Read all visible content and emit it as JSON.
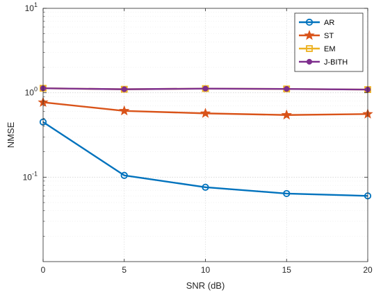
{
  "chart_data": {
    "type": "line",
    "xlabel": "SNR (dB)",
    "ylabel": "NMSE",
    "x": [
      0,
      5,
      10,
      15,
      20
    ],
    "xlim": [
      0,
      20
    ],
    "ylim": [
      0.01,
      10
    ],
    "yscale": "log",
    "grid": true,
    "legend_position": "top-right",
    "x_ticks": [
      "0",
      "5",
      "10",
      "15",
      "20"
    ],
    "y_ticks": [
      {
        "base": "10",
        "exp": "-1",
        "value": 0.1
      },
      {
        "base": "10",
        "exp": "0",
        "value": 1
      },
      {
        "base": "10",
        "exp": "1",
        "value": 10
      }
    ],
    "series": [
      {
        "name": "AR",
        "color": "#0072BD",
        "marker": "circle",
        "values": [
          0.45,
          0.105,
          0.076,
          0.064,
          0.06
        ]
      },
      {
        "name": "ST",
        "color": "#D95319",
        "marker": "star",
        "values": [
          0.77,
          0.61,
          0.57,
          0.545,
          0.56
        ]
      },
      {
        "name": "EM",
        "color": "#EDB120",
        "marker": "square",
        "values": [
          1.13,
          1.1,
          1.12,
          1.11,
          1.09
        ]
      },
      {
        "name": "J-BITH",
        "color": "#7E2F8E",
        "marker": "dot",
        "values": [
          1.13,
          1.1,
          1.12,
          1.11,
          1.09
        ]
      }
    ]
  }
}
